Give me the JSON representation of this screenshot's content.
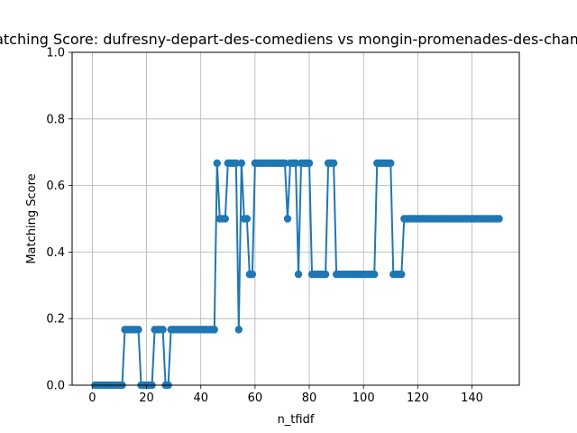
{
  "chart_data": {
    "type": "line",
    "title": "TF-IDF Matching Score: dufresny-depart-des-comediens vs mongin-promenades-des-champs-elysees",
    "xlabel": "n_tfidf",
    "ylabel": "Matching Score",
    "xlim": [
      -7.45,
      157.45
    ],
    "ylim": [
      0.0,
      1.0
    ],
    "xticks": [
      0,
      20,
      40,
      60,
      80,
      100,
      120,
      140
    ],
    "yticks": [
      0.0,
      0.2,
      0.4,
      0.6,
      0.8,
      1.0
    ],
    "xtick_labels": [
      "0",
      "20",
      "40",
      "60",
      "80",
      "100",
      "120",
      "140"
    ],
    "ytick_labels": [
      "0.0",
      "0.2",
      "0.4",
      "0.6",
      "0.8",
      "1.0"
    ],
    "grid": true,
    "line_color": "#1f77b4",
    "marker": "circle",
    "series": [
      {
        "x": [
          1,
          2,
          3,
          4,
          5,
          6,
          7,
          8,
          9,
          10,
          11,
          12,
          13,
          14,
          15,
          16,
          17,
          18,
          19,
          20,
          21,
          22,
          23,
          24,
          25,
          26,
          27,
          28,
          29,
          30,
          31,
          32,
          33,
          34,
          35,
          36,
          37,
          38,
          39,
          40,
          41,
          42,
          43,
          44,
          45,
          46,
          47,
          48,
          49,
          50,
          51,
          52,
          53,
          54,
          55,
          56,
          57,
          58,
          59,
          60,
          61,
          62,
          63,
          64,
          65,
          66,
          67,
          68,
          69,
          70,
          71,
          72,
          73,
          74,
          75,
          76,
          77,
          78,
          79,
          80,
          81,
          82,
          83,
          84,
          85,
          86,
          87,
          88,
          89,
          90,
          91,
          92,
          93,
          94,
          95,
          96,
          97,
          98,
          99,
          100,
          101,
          102,
          103,
          104,
          105,
          106,
          107,
          108,
          109,
          110,
          111,
          112,
          113,
          114,
          115,
          116,
          117,
          118,
          119,
          120,
          121,
          122,
          123,
          124,
          125,
          126,
          127,
          128,
          129,
          130,
          131,
          132,
          133,
          134,
          135,
          136,
          137,
          138,
          139,
          140,
          141,
          142,
          143,
          144,
          145,
          146,
          147,
          148,
          149,
          150
        ],
        "values": [
          0,
          0,
          0,
          0,
          0,
          0,
          0,
          0,
          0,
          0,
          0,
          0.167,
          0.167,
          0.167,
          0.167,
          0.167,
          0.167,
          0,
          0,
          0,
          0,
          0,
          0.167,
          0.167,
          0.167,
          0.167,
          0,
          0,
          0.167,
          0.167,
          0.167,
          0.167,
          0.167,
          0.167,
          0.167,
          0.167,
          0.167,
          0.167,
          0.167,
          0.167,
          0.167,
          0.167,
          0.167,
          0.167,
          0.167,
          0.667,
          0.5,
          0.5,
          0.5,
          0.667,
          0.667,
          0.667,
          0.667,
          0.167,
          0.667,
          0.5,
          0.5,
          0.333,
          0.333,
          0.667,
          0.667,
          0.667,
          0.667,
          0.667,
          0.667,
          0.667,
          0.667,
          0.667,
          0.667,
          0.667,
          0.667,
          0.5,
          0.667,
          0.667,
          0.667,
          0.333,
          0.667,
          0.667,
          0.667,
          0.667,
          0.333,
          0.333,
          0.333,
          0.333,
          0.333,
          0.333,
          0.667,
          0.667,
          0.667,
          0.333,
          0.333,
          0.333,
          0.333,
          0.333,
          0.333,
          0.333,
          0.333,
          0.333,
          0.333,
          0.333,
          0.333,
          0.333,
          0.333,
          0.333,
          0.667,
          0.667,
          0.667,
          0.667,
          0.667,
          0.667,
          0.333,
          0.333,
          0.333,
          0.333,
          0.5,
          0.5,
          0.5,
          0.5,
          0.5,
          0.5,
          0.5,
          0.5,
          0.5,
          0.5,
          0.5,
          0.5,
          0.5,
          0.5,
          0.5,
          0.5,
          0.5,
          0.5,
          0.5,
          0.5,
          0.5,
          0.5,
          0.5,
          0.5,
          0.5,
          0.5,
          0.5,
          0.5,
          0.5,
          0.5,
          0.5,
          0.5,
          0.5,
          0.5,
          0.5,
          0.5
        ]
      }
    ]
  }
}
